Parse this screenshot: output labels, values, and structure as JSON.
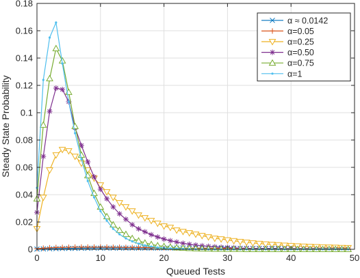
{
  "chart_data": {
    "type": "line",
    "title": "",
    "xlabel": "Queued Tests",
    "ylabel": "Steady State Probability",
    "xlim": [
      0,
      50
    ],
    "ylim": [
      0,
      0.18
    ],
    "xticks": [
      0,
      10,
      20,
      30,
      40,
      50
    ],
    "yticks": [
      0,
      0.02,
      0.04,
      0.06,
      0.08,
      0.1,
      0.12,
      0.14,
      0.16,
      0.18
    ],
    "grid": true,
    "legend_position": "top-right",
    "x": [
      0,
      1,
      2,
      3,
      4,
      5,
      6,
      7,
      8,
      9,
      10,
      11,
      12,
      13,
      14,
      15,
      16,
      17,
      18,
      19,
      20,
      21,
      22,
      23,
      24,
      25,
      26,
      27,
      28,
      29,
      30,
      31,
      32,
      33,
      34,
      35,
      36,
      37,
      38,
      39,
      40,
      41,
      42,
      43,
      44,
      45,
      46,
      47,
      48,
      49
    ],
    "series": [
      {
        "name": "α ≈ 0.0142",
        "color": "#0072BD",
        "marker": "x",
        "values": [
          0.0002,
          0.0003,
          0.0004,
          0.0005,
          0.0006,
          0.0007,
          0.0007,
          0.0008,
          0.0008,
          0.0009,
          0.0009,
          0.0009,
          0.0009,
          0.0009,
          0.0009,
          0.0009,
          0.0009,
          0.0009,
          0.0009,
          0.0009,
          0.0009,
          0.0009,
          0.0009,
          0.0008,
          0.0008,
          0.0008,
          0.0008,
          0.0008,
          0.0008,
          0.0008,
          0.0008,
          0.0007,
          0.0007,
          0.0007,
          0.0007,
          0.0007,
          0.0007,
          0.0007,
          0.0007,
          0.0006,
          0.0006,
          0.0006,
          0.0006,
          0.0006,
          0.0006,
          0.0006,
          0.0006,
          0.0006,
          0.0005,
          0.0005
        ]
      },
      {
        "name": "α=0.05",
        "color": "#D95319",
        "marker": "plus",
        "values": [
          0.0005,
          0.0008,
          0.0011,
          0.0013,
          0.0014,
          0.0015,
          0.0016,
          0.0016,
          0.0016,
          0.0016,
          0.0016,
          0.0016,
          0.0015,
          0.0015,
          0.0014,
          0.0014,
          0.0013,
          0.0013,
          0.0012,
          0.0012,
          0.0011,
          0.0011,
          0.001,
          0.001,
          0.0009,
          0.0009,
          0.0008,
          0.0008,
          0.0008,
          0.0007,
          0.0007,
          0.0007,
          0.0006,
          0.0006,
          0.0006,
          0.0005,
          0.0005,
          0.0005,
          0.0005,
          0.0004,
          0.0004,
          0.0004,
          0.0004,
          0.0004,
          0.0003,
          0.0003,
          0.0003,
          0.0003,
          0.0003,
          0.0003
        ]
      },
      {
        "name": "α=0.25",
        "color": "#EDB120",
        "marker": "triangle-down",
        "values": [
          0.015,
          0.038,
          0.058,
          0.069,
          0.073,
          0.072,
          0.068,
          0.063,
          0.058,
          0.052,
          0.047,
          0.042,
          0.038,
          0.034,
          0.031,
          0.028,
          0.025,
          0.023,
          0.021,
          0.019,
          0.017,
          0.016,
          0.014,
          0.013,
          0.012,
          0.011,
          0.01,
          0.009,
          0.008,
          0.0075,
          0.0068,
          0.0062,
          0.0056,
          0.0051,
          0.0046,
          0.0042,
          0.0038,
          0.0035,
          0.0032,
          0.0029,
          0.0026,
          0.0024,
          0.0022,
          0.002,
          0.0018,
          0.0016,
          0.0015,
          0.0014,
          0.0012,
          0.0011
        ]
      },
      {
        "name": "α=0.50",
        "color": "#7E2F8E",
        "marker": "asterisk",
        "values": [
          0.027,
          0.068,
          0.101,
          0.118,
          0.117,
          0.108,
          0.089,
          0.076,
          0.064,
          0.053,
          0.044,
          0.037,
          0.031,
          0.026,
          0.022,
          0.018,
          0.015,
          0.0128,
          0.0107,
          0.009,
          0.0075,
          0.0063,
          0.0053,
          0.0044,
          0.0037,
          0.0031,
          0.0026,
          0.0022,
          0.0018,
          0.0015,
          0.0013,
          0.0011,
          0.0009,
          0.0008,
          0.0006,
          0.0005,
          0.0005,
          0.0004,
          0.0003,
          0.0003,
          0.0002,
          0.0002,
          0.0002,
          0.0001,
          0.0001,
          0.0001,
          0.0001,
          0.0001,
          0.0001,
          0.0001
        ]
      },
      {
        "name": "α=0.75",
        "color": "#77AC30",
        "marker": "triangle-up",
        "values": [
          0.037,
          0.091,
          0.125,
          0.147,
          0.138,
          0.115,
          0.09,
          0.069,
          0.054,
          0.041,
          0.031,
          0.024,
          0.018,
          0.014,
          0.011,
          0.008,
          0.0062,
          0.0047,
          0.0036,
          0.0027,
          0.0021,
          0.0016,
          0.0012,
          0.0009,
          0.0007,
          0.0005,
          0.0004,
          0.0003,
          0.0002,
          0.0002,
          0.0001,
          0.0001,
          0.0001,
          0,
          0,
          0,
          0,
          0,
          0,
          0,
          0,
          0,
          0,
          0,
          0,
          0,
          0,
          0,
          0,
          0
        ]
      },
      {
        "name": "α=1",
        "color": "#4DBEEE",
        "marker": "dot",
        "values": [
          0.045,
          0.124,
          0.155,
          0.166,
          0.136,
          0.108,
          0.085,
          0.066,
          0.05,
          0.038,
          0.028,
          0.021,
          0.015,
          0.011,
          0.008,
          0.0058,
          0.0041,
          0.0029,
          0.002,
          0.0014,
          0.001,
          0.0007,
          0.0005,
          0.0003,
          0.0002,
          0.0001,
          0.0001,
          0,
          0,
          0,
          0,
          0,
          0,
          0,
          0,
          0,
          0,
          0,
          0,
          0,
          0,
          0,
          0,
          0,
          0,
          0,
          0,
          0,
          0,
          0
        ]
      }
    ]
  }
}
